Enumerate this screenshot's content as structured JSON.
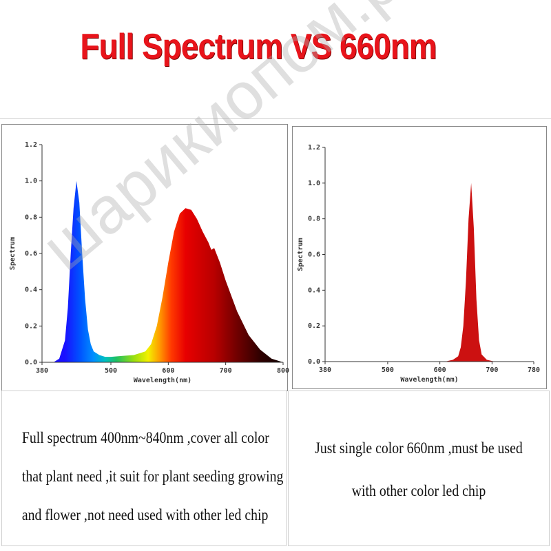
{
  "title": {
    "text": "Full Spectrum VS 660nm",
    "color": "#e8141b"
  },
  "left_caption": [
    "Full spectrum 400nm~840nm ,cover all color",
    "that plant need ,it suit for plant seeding growing",
    "and flower ,not need used with other led chip"
  ],
  "right_caption": [
    "Just single color 660nm ,must be used",
    "with other color led chip"
  ],
  "watermark": "шарикиопом.рф",
  "chart_data": [
    {
      "type": "area",
      "xlabel": "Wavelength(nm)",
      "ylabel": "Spectrum",
      "xlim": [
        380,
        800
      ],
      "ylim": [
        0,
        1.2
      ],
      "xticks": [
        380,
        500,
        600,
        700,
        800
      ],
      "xtick_labels": [
        "380",
        "500",
        "600",
        "700",
        "800"
      ],
      "yticks": [
        0,
        0.2,
        0.4,
        0.6,
        0.8,
        1.0,
        1.2
      ],
      "ytick_labels": [
        "0.0",
        "0.2",
        "0.4",
        "0.6",
        "0.8",
        "1.0",
        "1.2"
      ],
      "fill": "visible-spectrum gradient",
      "x": [
        400,
        410,
        420,
        425,
        430,
        435,
        440,
        445,
        450,
        455,
        460,
        465,
        470,
        480,
        490,
        500,
        520,
        540,
        560,
        570,
        580,
        590,
        600,
        610,
        620,
        630,
        640,
        650,
        660,
        670,
        675,
        680,
        690,
        700,
        720,
        740,
        760,
        780,
        800
      ],
      "y": [
        0.0,
        0.02,
        0.12,
        0.3,
        0.6,
        0.85,
        1.0,
        0.88,
        0.6,
        0.35,
        0.18,
        0.1,
        0.06,
        0.04,
        0.03,
        0.03,
        0.035,
        0.04,
        0.06,
        0.1,
        0.2,
        0.36,
        0.55,
        0.72,
        0.82,
        0.85,
        0.84,
        0.79,
        0.72,
        0.66,
        0.62,
        0.63,
        0.55,
        0.45,
        0.28,
        0.15,
        0.07,
        0.02,
        0.0
      ]
    },
    {
      "type": "area",
      "xlabel": "Wavelength(nm)",
      "ylabel": "Spectrum",
      "xlim": [
        380,
        780
      ],
      "ylim": [
        0,
        1.2
      ],
      "xticks": [
        380,
        500,
        600,
        700,
        780
      ],
      "xtick_labels": [
        "380",
        "500",
        "600",
        "700",
        "780"
      ],
      "yticks": [
        0,
        0.2,
        0.4,
        0.6,
        0.8,
        1.0,
        1.2
      ],
      "ytick_labels": [
        "0.0",
        "0.2",
        "0.4",
        "0.6",
        "0.8",
        "1.0",
        "1.2"
      ],
      "fill": "#cc1111",
      "x": [
        610,
        625,
        635,
        640,
        645,
        650,
        655,
        660,
        665,
        670,
        675,
        680,
        690,
        705
      ],
      "y": [
        0.0,
        0.01,
        0.03,
        0.08,
        0.2,
        0.45,
        0.8,
        1.0,
        0.75,
        0.35,
        0.12,
        0.04,
        0.01,
        0.0
      ]
    }
  ]
}
